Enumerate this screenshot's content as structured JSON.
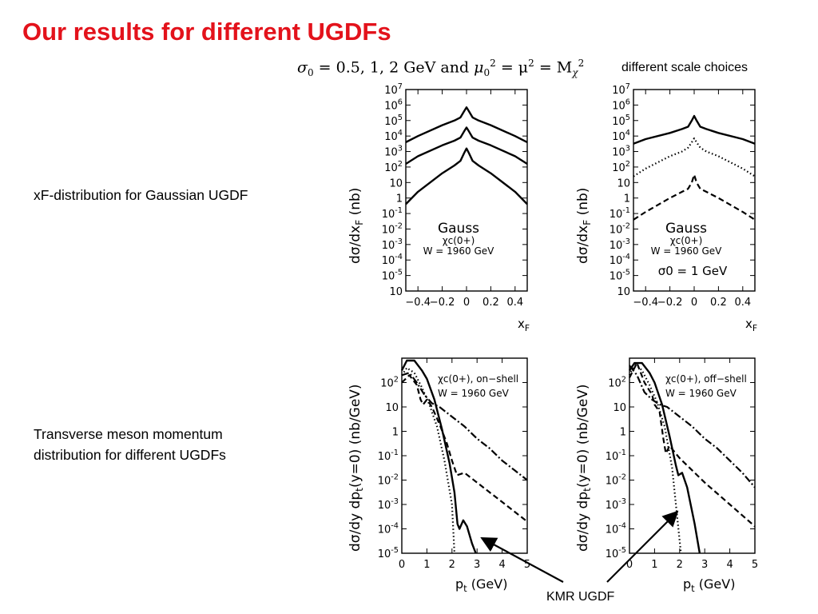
{
  "slide": {
    "title": "Our results for different UGDFs",
    "formula": {
      "prefix": "σ",
      "prefix_sub": "0",
      "values": " = 0.5, 1, 2 GeV",
      "and_text": " and ",
      "mu": "μ",
      "mu_sub": "0",
      "sq": "2",
      "eq_mid": " = μ",
      "eq_end": " = M",
      "chi": "χ"
    },
    "scale_note": "different scale choices",
    "xf_caption": "xF-distribution for Gaussian UGDF",
    "pt_caption_line1": "Transverse meson momentum",
    "pt_caption_line2": "distribution for different UGDFs",
    "kmr_label": "KMR UGDF"
  },
  "chart_data": [
    {
      "type": "line",
      "panel": "xF Gauss, different sigma0",
      "xlabel": "x_F",
      "ylabel": "dσ/dx_F (nb)",
      "log_y": true,
      "xlim": [
        -0.5,
        0.5
      ],
      "ylim_log10": [
        -6,
        7
      ],
      "x_ticks": [
        "−0.4",
        "−0.2",
        "0",
        "0.2",
        "0.4"
      ],
      "y_ticks": [
        "10^7",
        "10^6",
        "10^5",
        "10^4",
        "10^3",
        "10^2",
        "10",
        "1",
        "10^-1",
        "10^-2",
        "10^-3",
        "10^-4",
        "10^-5",
        "10"
      ],
      "annotations": [
        "Gauss",
        "χc(0+)",
        "W = 1960 GeV"
      ],
      "series": [
        {
          "style": "solid",
          "x": [
            -0.5,
            -0.4,
            -0.2,
            -0.1,
            -0.05,
            -0.02,
            0,
            0.02,
            0.05,
            0.1,
            0.2,
            0.4,
            0.5
          ],
          "log10_y": [
            3.6,
            4.0,
            4.7,
            5.0,
            5.2,
            5.6,
            5.85,
            5.6,
            5.2,
            5.0,
            4.7,
            4.0,
            3.6
          ]
        },
        {
          "style": "solid",
          "x": [
            -0.5,
            -0.4,
            -0.2,
            -0.1,
            -0.05,
            -0.02,
            0,
            0.02,
            0.05,
            0.1,
            0.2,
            0.4,
            0.5
          ],
          "log10_y": [
            2.2,
            2.7,
            3.4,
            3.7,
            3.9,
            4.3,
            4.55,
            4.3,
            3.9,
            3.7,
            3.4,
            2.7,
            2.2
          ]
        },
        {
          "style": "solid",
          "x": [
            -0.5,
            -0.4,
            -0.2,
            -0.1,
            -0.05,
            -0.02,
            0,
            0.02,
            0.05,
            0.1,
            0.2,
            0.4,
            0.5
          ],
          "log10_y": [
            -0.4,
            0.4,
            1.6,
            2.1,
            2.4,
            2.9,
            3.2,
            2.9,
            2.4,
            2.1,
            1.6,
            0.4,
            -0.4
          ]
        }
      ]
    },
    {
      "type": "line",
      "panel": "xF Gauss, sigma0 = 1 GeV, different scales",
      "xlabel": "x_F",
      "ylabel": "dσ/dx_F (nb)",
      "log_y": true,
      "xlim": [
        -0.5,
        0.5
      ],
      "ylim_log10": [
        -6,
        7
      ],
      "x_ticks": [
        "−0.4",
        "−0.2",
        "0",
        "0.2",
        "0.4"
      ],
      "y_ticks": [
        "10^7",
        "10^6",
        "10^5",
        "10^4",
        "10^3",
        "10^2",
        "10",
        "1",
        "10^-1",
        "10^-2",
        "10^-3",
        "10^-4",
        "10^-5",
        "10"
      ],
      "annotations": [
        "Gauss",
        "χc(0+)",
        "W = 1960 GeV",
        "σ0 = 1 GeV"
      ],
      "series": [
        {
          "style": "solid",
          "x": [
            -0.5,
            -0.4,
            -0.2,
            -0.1,
            -0.05,
            -0.02,
            0,
            0.02,
            0.05,
            0.1,
            0.2,
            0.4,
            0.5
          ],
          "log10_y": [
            3.5,
            3.8,
            4.2,
            4.45,
            4.6,
            5.0,
            5.3,
            5.0,
            4.6,
            4.45,
            4.2,
            3.8,
            3.5
          ]
        },
        {
          "style": "dotted",
          "x": [
            -0.5,
            -0.4,
            -0.2,
            -0.1,
            -0.05,
            -0.02,
            0,
            0.02,
            0.05,
            0.1,
            0.2,
            0.4,
            0.5
          ],
          "log10_y": [
            1.4,
            1.9,
            2.7,
            3.0,
            3.25,
            3.6,
            3.85,
            3.6,
            3.25,
            3.0,
            2.7,
            1.9,
            1.4
          ]
        },
        {
          "style": "dashed",
          "x": [
            -0.5,
            -0.4,
            -0.2,
            -0.1,
            -0.05,
            -0.02,
            0,
            0.02,
            0.05,
            0.1,
            0.2,
            0.4,
            0.5
          ],
          "log10_y": [
            -1.4,
            -0.9,
            0.0,
            0.4,
            0.6,
            1.0,
            1.5,
            1.0,
            0.6,
            0.4,
            0.0,
            -0.9,
            -1.4
          ]
        }
      ]
    },
    {
      "type": "line",
      "panel": "pt distribution, on-shell",
      "xlabel": "p_t (GeV)",
      "ylabel": "dσ/dy dp_t(y=0) (nb/GeV)",
      "log_y": true,
      "xlim": [
        0,
        5
      ],
      "ylim_log10": [
        -5,
        3
      ],
      "x_ticks": [
        "0",
        "1",
        "2",
        "3",
        "4",
        "5"
      ],
      "y_ticks": [
        "10^2",
        "10",
        "1",
        "10^-1",
        "10^-2",
        "10^-3",
        "10^-4",
        "10^-5"
      ],
      "annotations": [
        "χc(0+), on−shell",
        "W = 1960 GeV"
      ],
      "series": [
        {
          "style": "solid",
          "x": [
            0,
            0.2,
            0.5,
            0.8,
            1.0,
            1.3,
            1.6,
            1.9,
            2.1,
            2.22,
            2.3,
            2.45,
            2.6,
            2.8,
            2.95
          ],
          "log10_y": [
            2.5,
            2.9,
            2.9,
            2.5,
            2.15,
            1.3,
            0.1,
            -1.3,
            -2.5,
            -3.8,
            -4.0,
            -3.65,
            -3.9,
            -4.6,
            -5.0
          ]
        },
        {
          "style": "dotted",
          "x": [
            0,
            0.2,
            0.5,
            0.8,
            1.1,
            1.4,
            1.7,
            2.0,
            2.1
          ],
          "log10_y": [
            2.3,
            2.6,
            2.4,
            1.8,
            1.1,
            0.2,
            -1.2,
            -3.0,
            -5.0
          ]
        },
        {
          "style": "dashed",
          "x": [
            0,
            0.3,
            0.6,
            0.75,
            0.85,
            1.0,
            1.2,
            1.5,
            1.8,
            2.0,
            2.2,
            2.5,
            3.0,
            4.0,
            5.0
          ],
          "log10_y": [
            2.0,
            2.3,
            1.9,
            1.3,
            1.1,
            1.3,
            1.0,
            0.3,
            -0.5,
            -1.2,
            -1.8,
            -1.7,
            -2.1,
            -2.9,
            -3.7
          ]
        },
        {
          "style": "dashdot",
          "x": [
            0,
            0.3,
            0.6,
            0.9,
            1.2,
            1.5,
            2.0,
            2.5,
            3.0,
            3.5,
            4.0,
            4.5,
            5.0
          ],
          "log10_y": [
            2.3,
            2.4,
            2.0,
            1.5,
            1.15,
            1.0,
            0.6,
            0.2,
            -0.3,
            -0.7,
            -1.2,
            -1.6,
            -2.0
          ]
        }
      ]
    },
    {
      "type": "line",
      "panel": "pt distribution, off-shell",
      "xlabel": "p_t (GeV)",
      "ylabel": "dσ/dy dp_t(y=0) (nb/GeV)",
      "log_y": true,
      "xlim": [
        0,
        5
      ],
      "ylim_log10": [
        -5,
        3
      ],
      "x_ticks": [
        "0",
        "1",
        "2",
        "3",
        "4",
        "5"
      ],
      "y_ticks": [
        "10^2",
        "10",
        "1",
        "10^-1",
        "10^-2",
        "10^-3",
        "10^-4",
        "10^-5"
      ],
      "annotations": [
        "χc(0+), off−shell",
        "W = 1960 GeV"
      ],
      "series": [
        {
          "style": "solid",
          "x": [
            0,
            0.2,
            0.5,
            0.8,
            1.0,
            1.3,
            1.6,
            1.85,
            1.95,
            2.1,
            2.3,
            2.6,
            2.8
          ],
          "log10_y": [
            2.5,
            2.8,
            2.8,
            2.4,
            2.0,
            1.1,
            -0.2,
            -1.4,
            -1.8,
            -1.7,
            -2.3,
            -3.8,
            -5.0
          ]
        },
        {
          "style": "dotted",
          "x": [
            0,
            0.2,
            0.5,
            0.8,
            1.1,
            1.4,
            1.7,
            1.9,
            2.05
          ],
          "log10_y": [
            2.3,
            2.8,
            2.5,
            1.9,
            1.2,
            0.2,
            -1.5,
            -3.5,
            -5.0
          ]
        },
        {
          "style": "dashed",
          "x": [
            0,
            0.3,
            0.6,
            0.9,
            1.0,
            1.2,
            1.35,
            1.45,
            1.6,
            2.0,
            2.5,
            3.0,
            4.0,
            5.0
          ],
          "log10_y": [
            2.2,
            2.8,
            2.0,
            1.5,
            1.1,
            0.8,
            -0.3,
            -0.9,
            -0.6,
            -1.1,
            -1.6,
            -2.1,
            -3.0,
            -3.9
          ]
        },
        {
          "style": "dashdot",
          "x": [
            0,
            0.3,
            0.6,
            0.9,
            1.2,
            1.5,
            2.0,
            2.5,
            3.0,
            3.5,
            4.0,
            4.5,
            5.0
          ],
          "log10_y": [
            2.7,
            2.3,
            1.6,
            1.3,
            1.1,
            1.0,
            0.6,
            0.2,
            -0.3,
            -0.7,
            -1.2,
            -1.7,
            -2.3
          ]
        }
      ]
    }
  ]
}
